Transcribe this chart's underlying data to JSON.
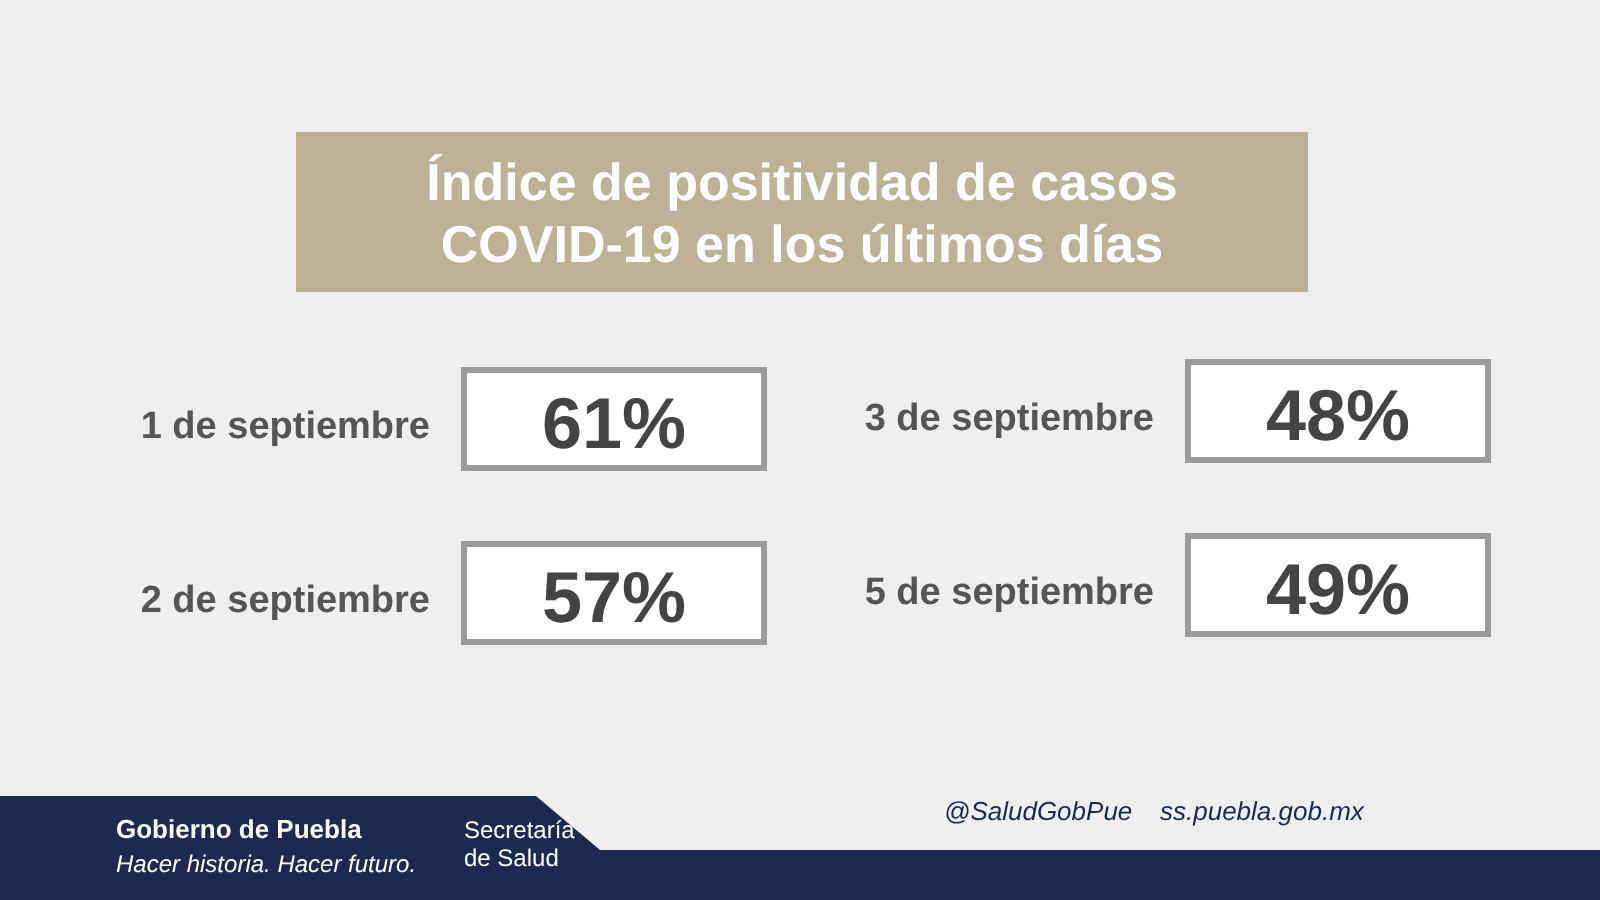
{
  "chart_data": {
    "type": "other",
    "title": "Índice de positividad de casos COVID-19 en los últimos días",
    "categories": [
      "1 de septiembre",
      "2 de septiembre",
      "3 de septiembre",
      "5 de septiembre"
    ],
    "values": [
      61,
      57,
      48,
      49
    ],
    "value_labels": [
      "61%",
      "57%",
      "48%",
      "49%"
    ],
    "annotations": [
      "Gobierno de Puebla",
      "Hacer historia. Hacer futuro.",
      "Secretaría de Salud",
      "@SaludGobPue",
      "ss.puebla.gob.mx"
    ]
  }
}
